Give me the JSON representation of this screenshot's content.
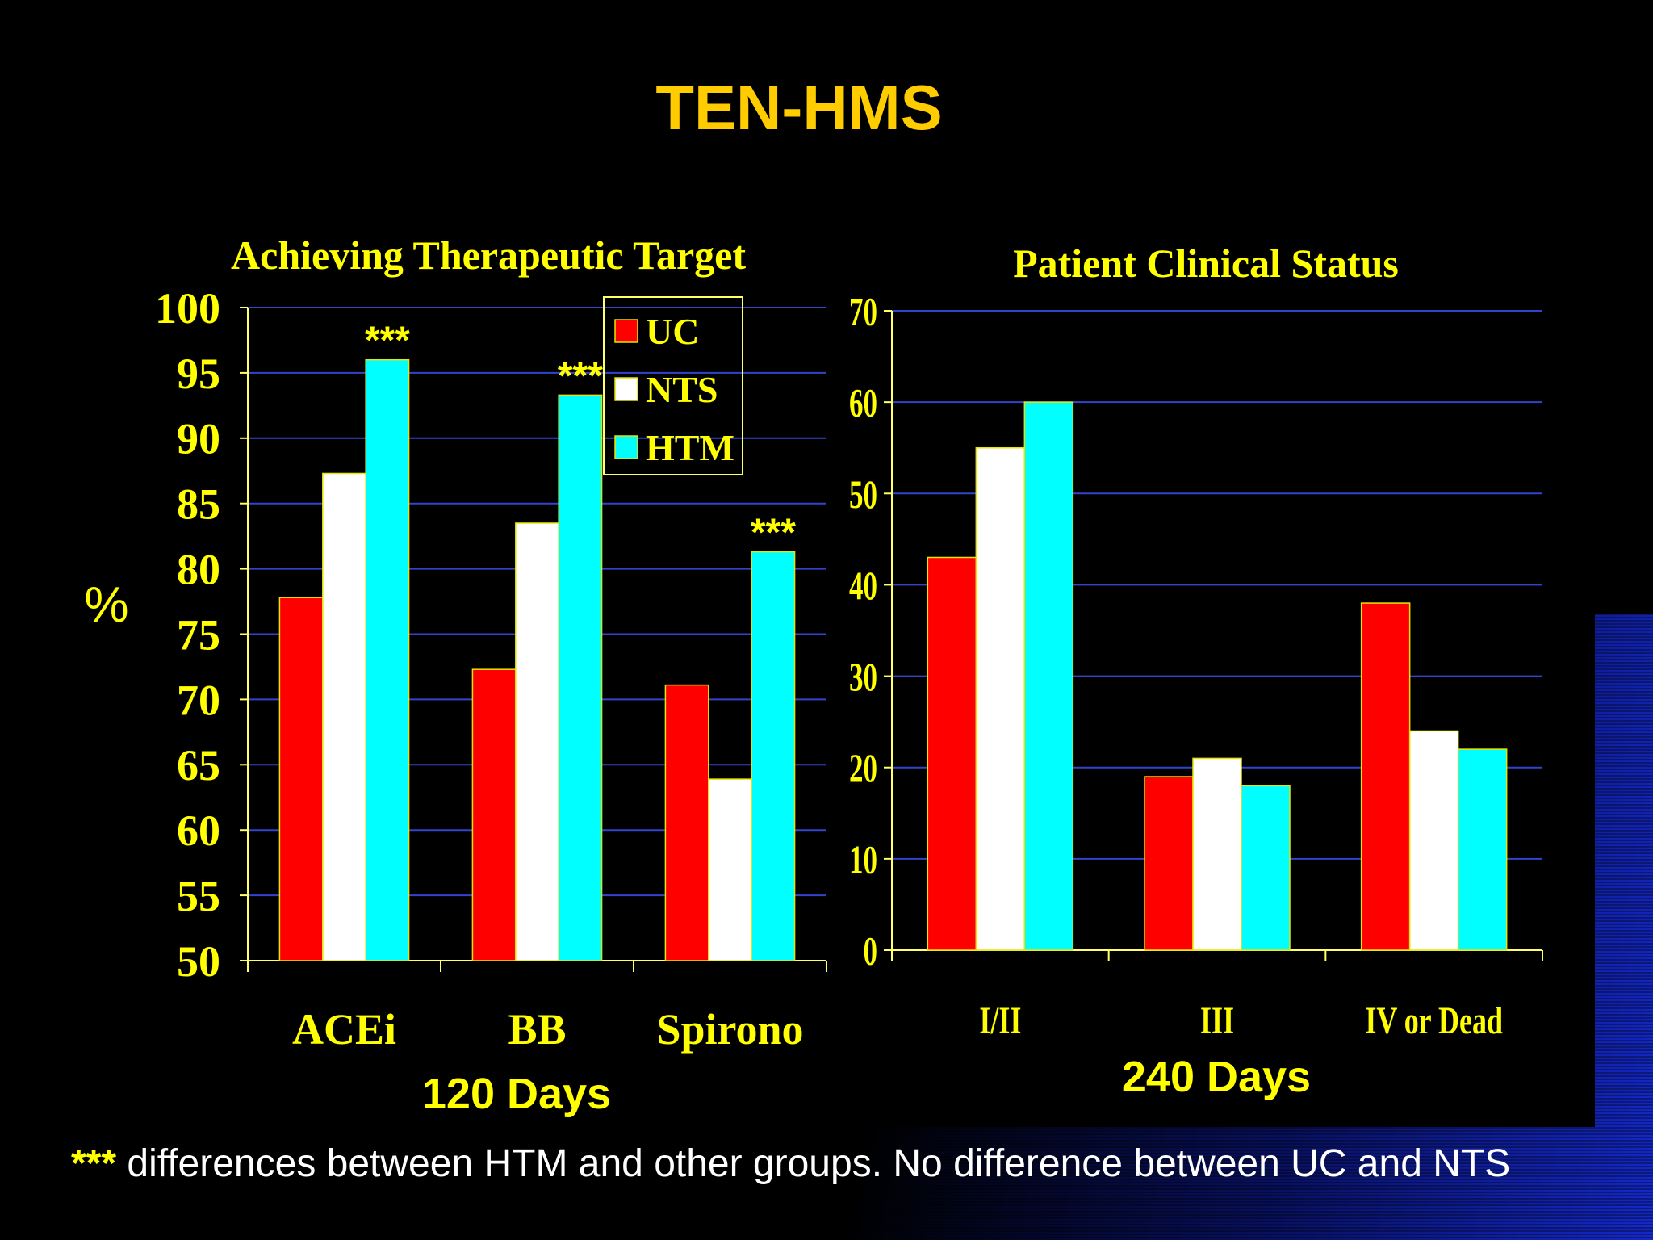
{
  "slide_title": "TEN-HMS",
  "footnote": {
    "stars": "***",
    "text": " differences between HTM and other groups. No difference between UC and NTS"
  },
  "colors": {
    "UC": "#ff0000",
    "NTS": "#ffffff",
    "HTM": "#00ffff",
    "grid": "#3344cc",
    "axis": "#ffff66",
    "label": "#ffff00",
    "bar_stroke": "#e6e600"
  },
  "chart_data": [
    {
      "type": "bar",
      "title": "Achieving Therapeutic Target",
      "ylabel": "%",
      "xlabel": "120 Days",
      "ylim": [
        50,
        100
      ],
      "ytick_step": 5,
      "categories": [
        "ACEi",
        "BB",
        "Spirono"
      ],
      "series": [
        {
          "name": "UC",
          "values": [
            77.8,
            72.3,
            71.1
          ]
        },
        {
          "name": "NTS",
          "values": [
            87.3,
            83.5,
            63.9
          ]
        },
        {
          "name": "HTM",
          "values": [
            96,
            93.3,
            81.3
          ]
        }
      ],
      "annotations": [
        "***",
        "***",
        "***"
      ],
      "legend": {
        "position": "top-right",
        "entries": [
          "UC",
          "NTS",
          "HTM"
        ]
      },
      "grid": true
    },
    {
      "type": "bar",
      "title": "Patient Clinical Status",
      "ylabel": "",
      "xlabel": "240 Days",
      "ylim": [
        0,
        70
      ],
      "ytick_step": 10,
      "categories": [
        "I/II",
        "III",
        "IV or Dead"
      ],
      "series": [
        {
          "name": "UC",
          "values": [
            43,
            19,
            38
          ]
        },
        {
          "name": "NTS",
          "values": [
            55,
            21,
            24
          ]
        },
        {
          "name": "HTM",
          "values": [
            60,
            18,
            22
          ]
        }
      ],
      "grid": true
    }
  ]
}
